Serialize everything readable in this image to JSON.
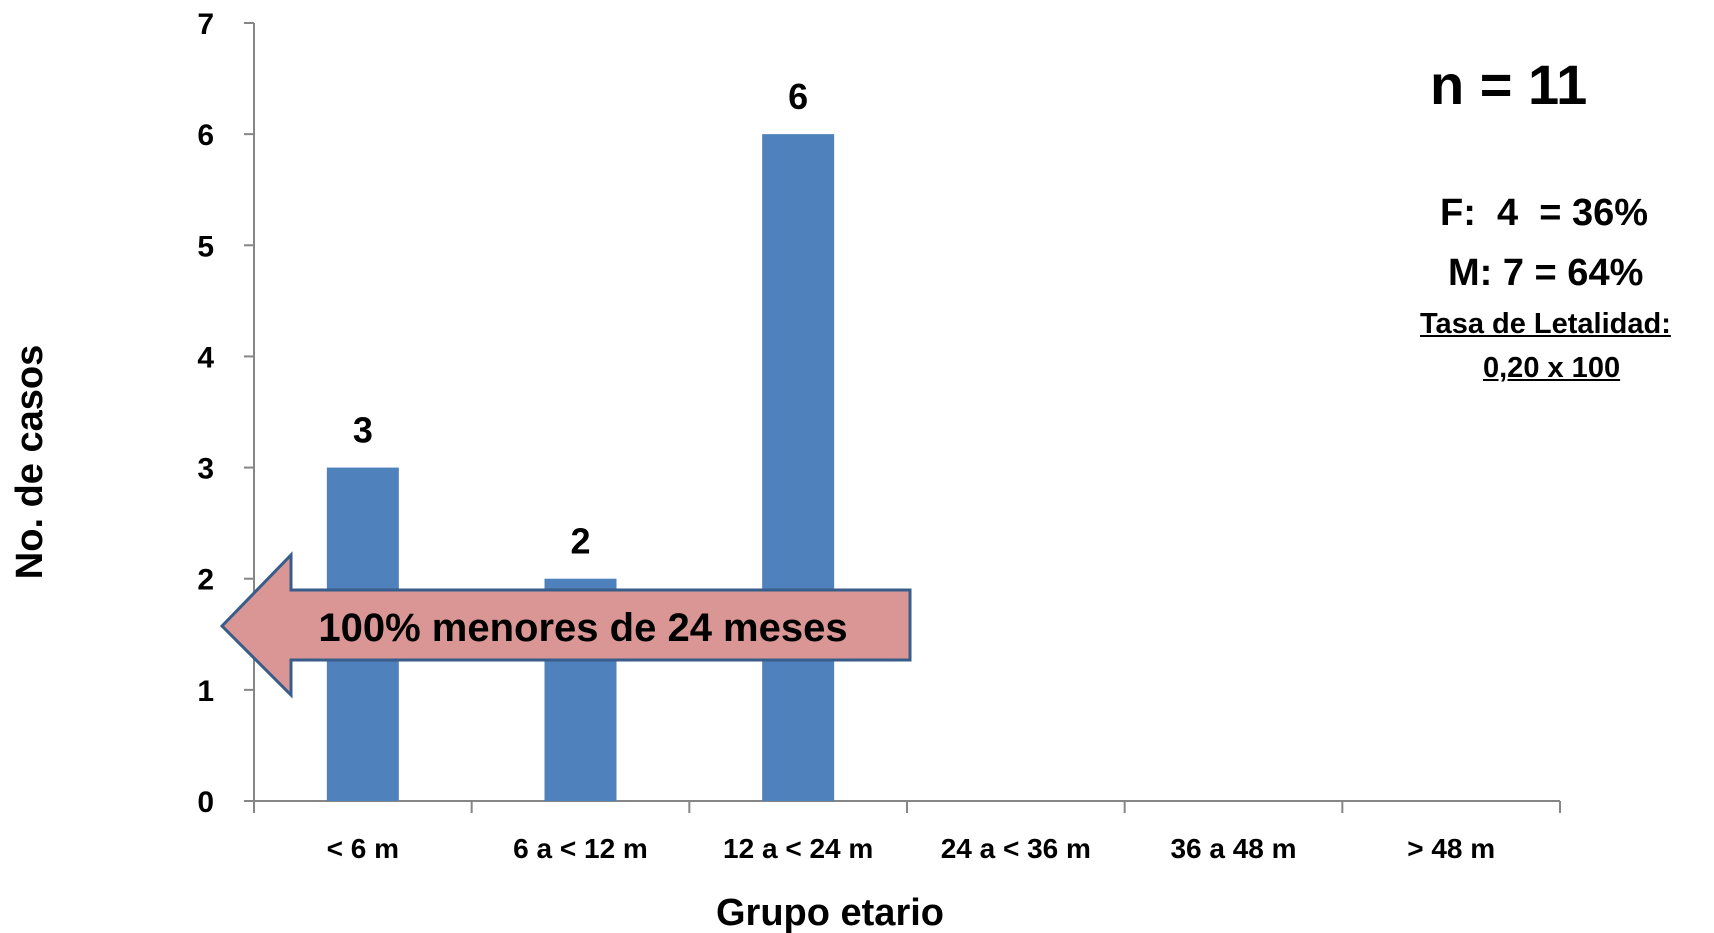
{
  "chart_data": {
    "type": "bar",
    "title": "",
    "xlabel": "Grupo etario",
    "ylabel": "No. de casos",
    "categories": [
      "< 6 m",
      "6 a < 12 m",
      "12 a < 24 m",
      "24 a < 36 m",
      "36 a 48 m",
      "> 48 m"
    ],
    "values": [
      3,
      2,
      6,
      0,
      0,
      0
    ],
    "data_labels": [
      "3",
      "2",
      "6",
      "",
      "",
      ""
    ],
    "ylim": [
      0,
      7
    ],
    "yticks": [
      0,
      1,
      2,
      3,
      4,
      5,
      6,
      7
    ],
    "grid": false,
    "bar_color": "#4F81BD",
    "annotation": {
      "text": "100% menores de 24 meses",
      "shape": "left-arrow",
      "fill": "#D99694",
      "stroke": "#385D8A"
    }
  },
  "stats": {
    "n": "n = 11",
    "female": "F:  4  = 36%",
    "male": "M: 7 = 64%",
    "fatality_label": "Tasa de Letalidad:",
    "fatality_value": "0,20 x 100"
  }
}
